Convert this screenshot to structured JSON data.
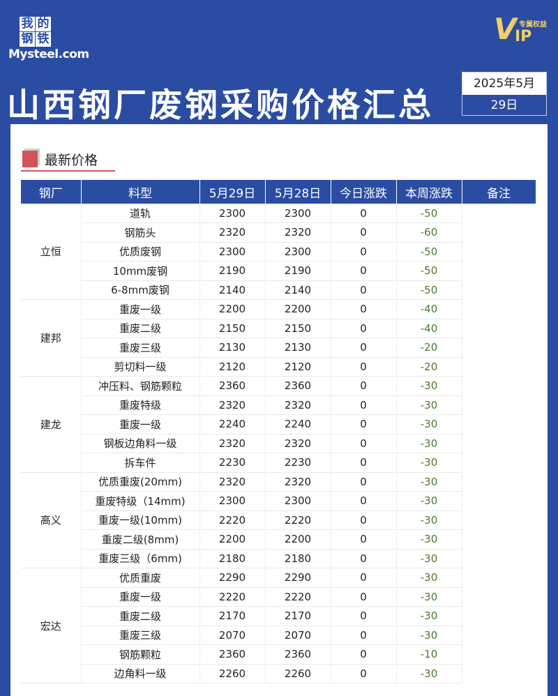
{
  "logo": {
    "cn": [
      "我",
      "的",
      "钢",
      "铁"
    ],
    "en": "Mysteel.com"
  },
  "vip": {
    "v": "V",
    "ip": "IP",
    "tag": "专属权益"
  },
  "title": "山西钢厂废钢采购价格汇总",
  "date": {
    "year_month": "2025年5月",
    "day": "29日"
  },
  "section": "最新价格",
  "columns": [
    "钢厂",
    "料型",
    "5月29日",
    "5月28日",
    "今日涨跌",
    "本周涨跌",
    "备注"
  ],
  "colors": {
    "bg": "#2a4ca2",
    "accent": "#d0545a",
    "down": "#4d7a2a"
  },
  "groups": [
    {
      "mill": "立恒",
      "rows": [
        [
          "道轨",
          "2300",
          "2300",
          "0",
          "-50"
        ],
        [
          "钢筋头",
          "2320",
          "2320",
          "0",
          "-60"
        ],
        [
          "优质废钢",
          "2300",
          "2300",
          "0",
          "-50"
        ],
        [
          "10mm废钢",
          "2190",
          "2190",
          "0",
          "-50"
        ],
        [
          "6-8mm废钢",
          "2140",
          "2140",
          "0",
          "-50"
        ]
      ]
    },
    {
      "mill": "建邦",
      "rows": [
        [
          "重废一级",
          "2200",
          "2200",
          "0",
          "-40"
        ],
        [
          "重废二级",
          "2150",
          "2150",
          "0",
          "-40"
        ],
        [
          "重废三级",
          "2130",
          "2130",
          "0",
          "-20"
        ],
        [
          "剪切料一级",
          "2120",
          "2120",
          "0",
          "-20"
        ]
      ]
    },
    {
      "mill": "建龙",
      "rows": [
        [
          "冲压料、钢筋颗粒",
          "2360",
          "2360",
          "0",
          "-30"
        ],
        [
          "重废特级",
          "2320",
          "2320",
          "0",
          "-30"
        ],
        [
          "重废一级",
          "2240",
          "2240",
          "0",
          "-30"
        ],
        [
          "钢板边角料一级",
          "2320",
          "2320",
          "0",
          "-30"
        ],
        [
          "拆车件",
          "2230",
          "2230",
          "0",
          "-30"
        ]
      ]
    },
    {
      "mill": "高义",
      "rows": [
        [
          "优质重废(20mm)",
          "2320",
          "2320",
          "0",
          "-30"
        ],
        [
          "重废特级（14mm)",
          "2300",
          "2300",
          "0",
          "-30"
        ],
        [
          "重废一级(10mm)",
          "2220",
          "2220",
          "0",
          "-30"
        ],
        [
          "重废二级(8mm)",
          "2200",
          "2200",
          "0",
          "-30"
        ],
        [
          "重废三级（6mm)",
          "2180",
          "2180",
          "0",
          "-30"
        ]
      ]
    },
    {
      "mill": "宏达",
      "rows": [
        [
          "优质重废",
          "2290",
          "2290",
          "0",
          "-30"
        ],
        [
          "重废一级",
          "2220",
          "2220",
          "0",
          "-30"
        ],
        [
          "重废二级",
          "2170",
          "2170",
          "0",
          "-30"
        ],
        [
          "重废三级",
          "2070",
          "2070",
          "0",
          "-30"
        ],
        [
          "钢筋颗粒",
          "2360",
          "2360",
          "0",
          "-10"
        ],
        [
          "边角料一级",
          "2260",
          "2260",
          "0",
          "-30"
        ]
      ]
    }
  ]
}
